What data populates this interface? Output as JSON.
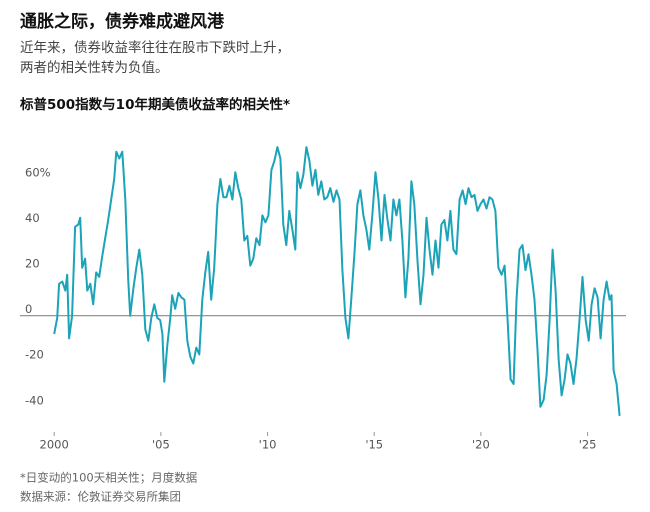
{
  "chart_data": {
    "type": "line",
    "title": "通胀之际，债券难成避风港",
    "subtitle": [
      "近年来，债券收益率往往在股市下跌时上升，",
      "两者的相关性转为负值。"
    ],
    "chart_title": "标普500指数与10年期美债收益率的相关性*",
    "notes": [
      "*日变动的100天相关性；月度数据",
      "数据来源：伦敦证券交易所集团"
    ],
    "xlim": [
      1999.1,
      2026.8
    ],
    "xticks": [
      {
        "value": 2000,
        "label": "2000"
      },
      {
        "value": 2005,
        "label": "'05"
      },
      {
        "value": 2010,
        "label": "'10"
      },
      {
        "value": 2015,
        "label": "'15"
      },
      {
        "value": 2020,
        "label": "'20"
      },
      {
        "value": 2025,
        "label": "'25"
      }
    ],
    "ylim": [
      -48,
      78
    ],
    "yticks": [
      -40,
      -20,
      0,
      20,
      40,
      {
        "value": 60,
        "label": "60%"
      }
    ],
    "grid": false,
    "color": "#1ba3b8",
    "x": [
      2000.0,
      2000.14,
      2000.23,
      2000.38,
      2000.52,
      2000.61,
      2000.7,
      2000.84,
      2000.98,
      2001.13,
      2001.22,
      2001.31,
      2001.45,
      2001.55,
      2001.69,
      2001.83,
      2001.97,
      2002.11,
      2002.25,
      2002.39,
      2002.53,
      2002.67,
      2002.81,
      2002.91,
      2003.05,
      2003.19,
      2003.33,
      2003.47,
      2003.56,
      2003.71,
      2003.85,
      2003.99,
      2004.13,
      2004.27,
      2004.41,
      2004.55,
      2004.69,
      2004.83,
      2004.97,
      2005.07,
      2005.16,
      2005.3,
      2005.44,
      2005.53,
      2005.67,
      2005.82,
      2005.96,
      2006.1,
      2006.24,
      2006.38,
      2006.52,
      2006.66,
      2006.8,
      2006.94,
      2007.08,
      2007.22,
      2007.36,
      2007.5,
      2007.65,
      2007.79,
      2007.93,
      2008.07,
      2008.21,
      2008.35,
      2008.49,
      2008.63,
      2008.77,
      2008.91,
      2009.05,
      2009.19,
      2009.33,
      2009.47,
      2009.62,
      2009.76,
      2009.9,
      2010.04,
      2010.18,
      2010.32,
      2010.46,
      2010.6,
      2010.74,
      2010.88,
      2011.02,
      2011.16,
      2011.3,
      2011.4,
      2011.54,
      2011.68,
      2011.82,
      2011.96,
      2012.1,
      2012.24,
      2012.38,
      2012.52,
      2012.66,
      2012.8,
      2012.94,
      2013.09,
      2013.23,
      2013.37,
      2013.51,
      2013.65,
      2013.79,
      2013.93,
      2014.07,
      2014.21,
      2014.35,
      2014.49,
      2014.63,
      2014.77,
      2014.91,
      2015.06,
      2015.2,
      2015.34,
      2015.48,
      2015.62,
      2015.76,
      2015.9,
      2016.04,
      2016.18,
      2016.32,
      2016.46,
      2016.6,
      2016.74,
      2016.88,
      2017.03,
      2017.17,
      2017.31,
      2017.45,
      2017.59,
      2017.73,
      2017.87,
      2018.01,
      2018.15,
      2018.29,
      2018.43,
      2018.57,
      2018.71,
      2018.85,
      2019.0,
      2019.14,
      2019.28,
      2019.42,
      2019.56,
      2019.7,
      2019.84,
      2019.98,
      2020.12,
      2020.26,
      2020.4,
      2020.54,
      2020.68,
      2020.82,
      2020.97,
      2021.11,
      2021.25,
      2021.39,
      2021.53,
      2021.67,
      2021.81,
      2021.95,
      2022.09,
      2022.23,
      2022.37,
      2022.51,
      2022.65,
      2022.79,
      2022.94,
      2023.08,
      2023.22,
      2023.36,
      2023.5,
      2023.64,
      2023.78,
      2023.92,
      2024.06,
      2024.2,
      2024.34,
      2024.48,
      2024.62,
      2024.76,
      2024.91,
      2025.05,
      2025.19,
      2025.33,
      2025.47,
      2025.61,
      2025.75,
      2025.89,
      2026.03,
      2026.12,
      2026.22,
      2026.36,
      2026.5
    ],
    "values": [
      -8,
      -1,
      14,
      15,
      11,
      18,
      -10,
      0,
      39,
      40,
      43,
      21,
      25,
      11,
      14,
      5,
      19,
      17,
      26,
      34,
      42,
      51,
      60,
      72,
      69,
      72,
      51,
      16,
      0,
      12,
      21,
      29,
      18,
      -6,
      -11,
      -1,
      5,
      -1,
      -2,
      -8,
      -29,
      -13,
      -1,
      9,
      3,
      10,
      8,
      7,
      -11,
      -18,
      -21,
      -14,
      -17,
      7,
      19,
      28,
      7,
      21,
      49,
      60,
      52,
      52,
      57,
      51,
      63,
      56,
      51,
      33,
      35,
      22,
      25,
      34,
      31,
      44,
      41,
      44,
      64,
      68,
      74,
      69,
      40,
      31,
      46,
      38,
      29,
      63,
      56,
      62,
      74,
      68,
      57,
      64,
      53,
      59,
      51,
      52,
      56,
      50,
      55,
      51,
      20,
      -1,
      -10,
      8,
      27,
      49,
      55,
      44,
      38,
      29,
      44,
      63,
      51,
      33,
      53,
      42,
      33,
      51,
      44,
      51,
      33,
      8,
      25,
      59,
      49,
      24,
      5,
      18,
      43,
      29,
      18,
      33,
      21,
      40,
      42,
      33,
      46,
      29,
      27,
      51,
      55,
      49,
      56,
      52,
      53,
      46,
      49,
      51,
      47,
      52,
      51,
      46,
      21,
      18,
      22,
      -2,
      -28,
      -30,
      7,
      29,
      31,
      20,
      27,
      18,
      7,
      -15,
      -40,
      -37,
      -26,
      -2,
      29,
      11,
      -19,
      -35,
      -28,
      -17,
      -21,
      -30,
      -19,
      -2,
      17,
      -2,
      -11,
      5,
      12,
      8,
      -10,
      7,
      15,
      7,
      9,
      -24,
      -30,
      -44
    ]
  }
}
